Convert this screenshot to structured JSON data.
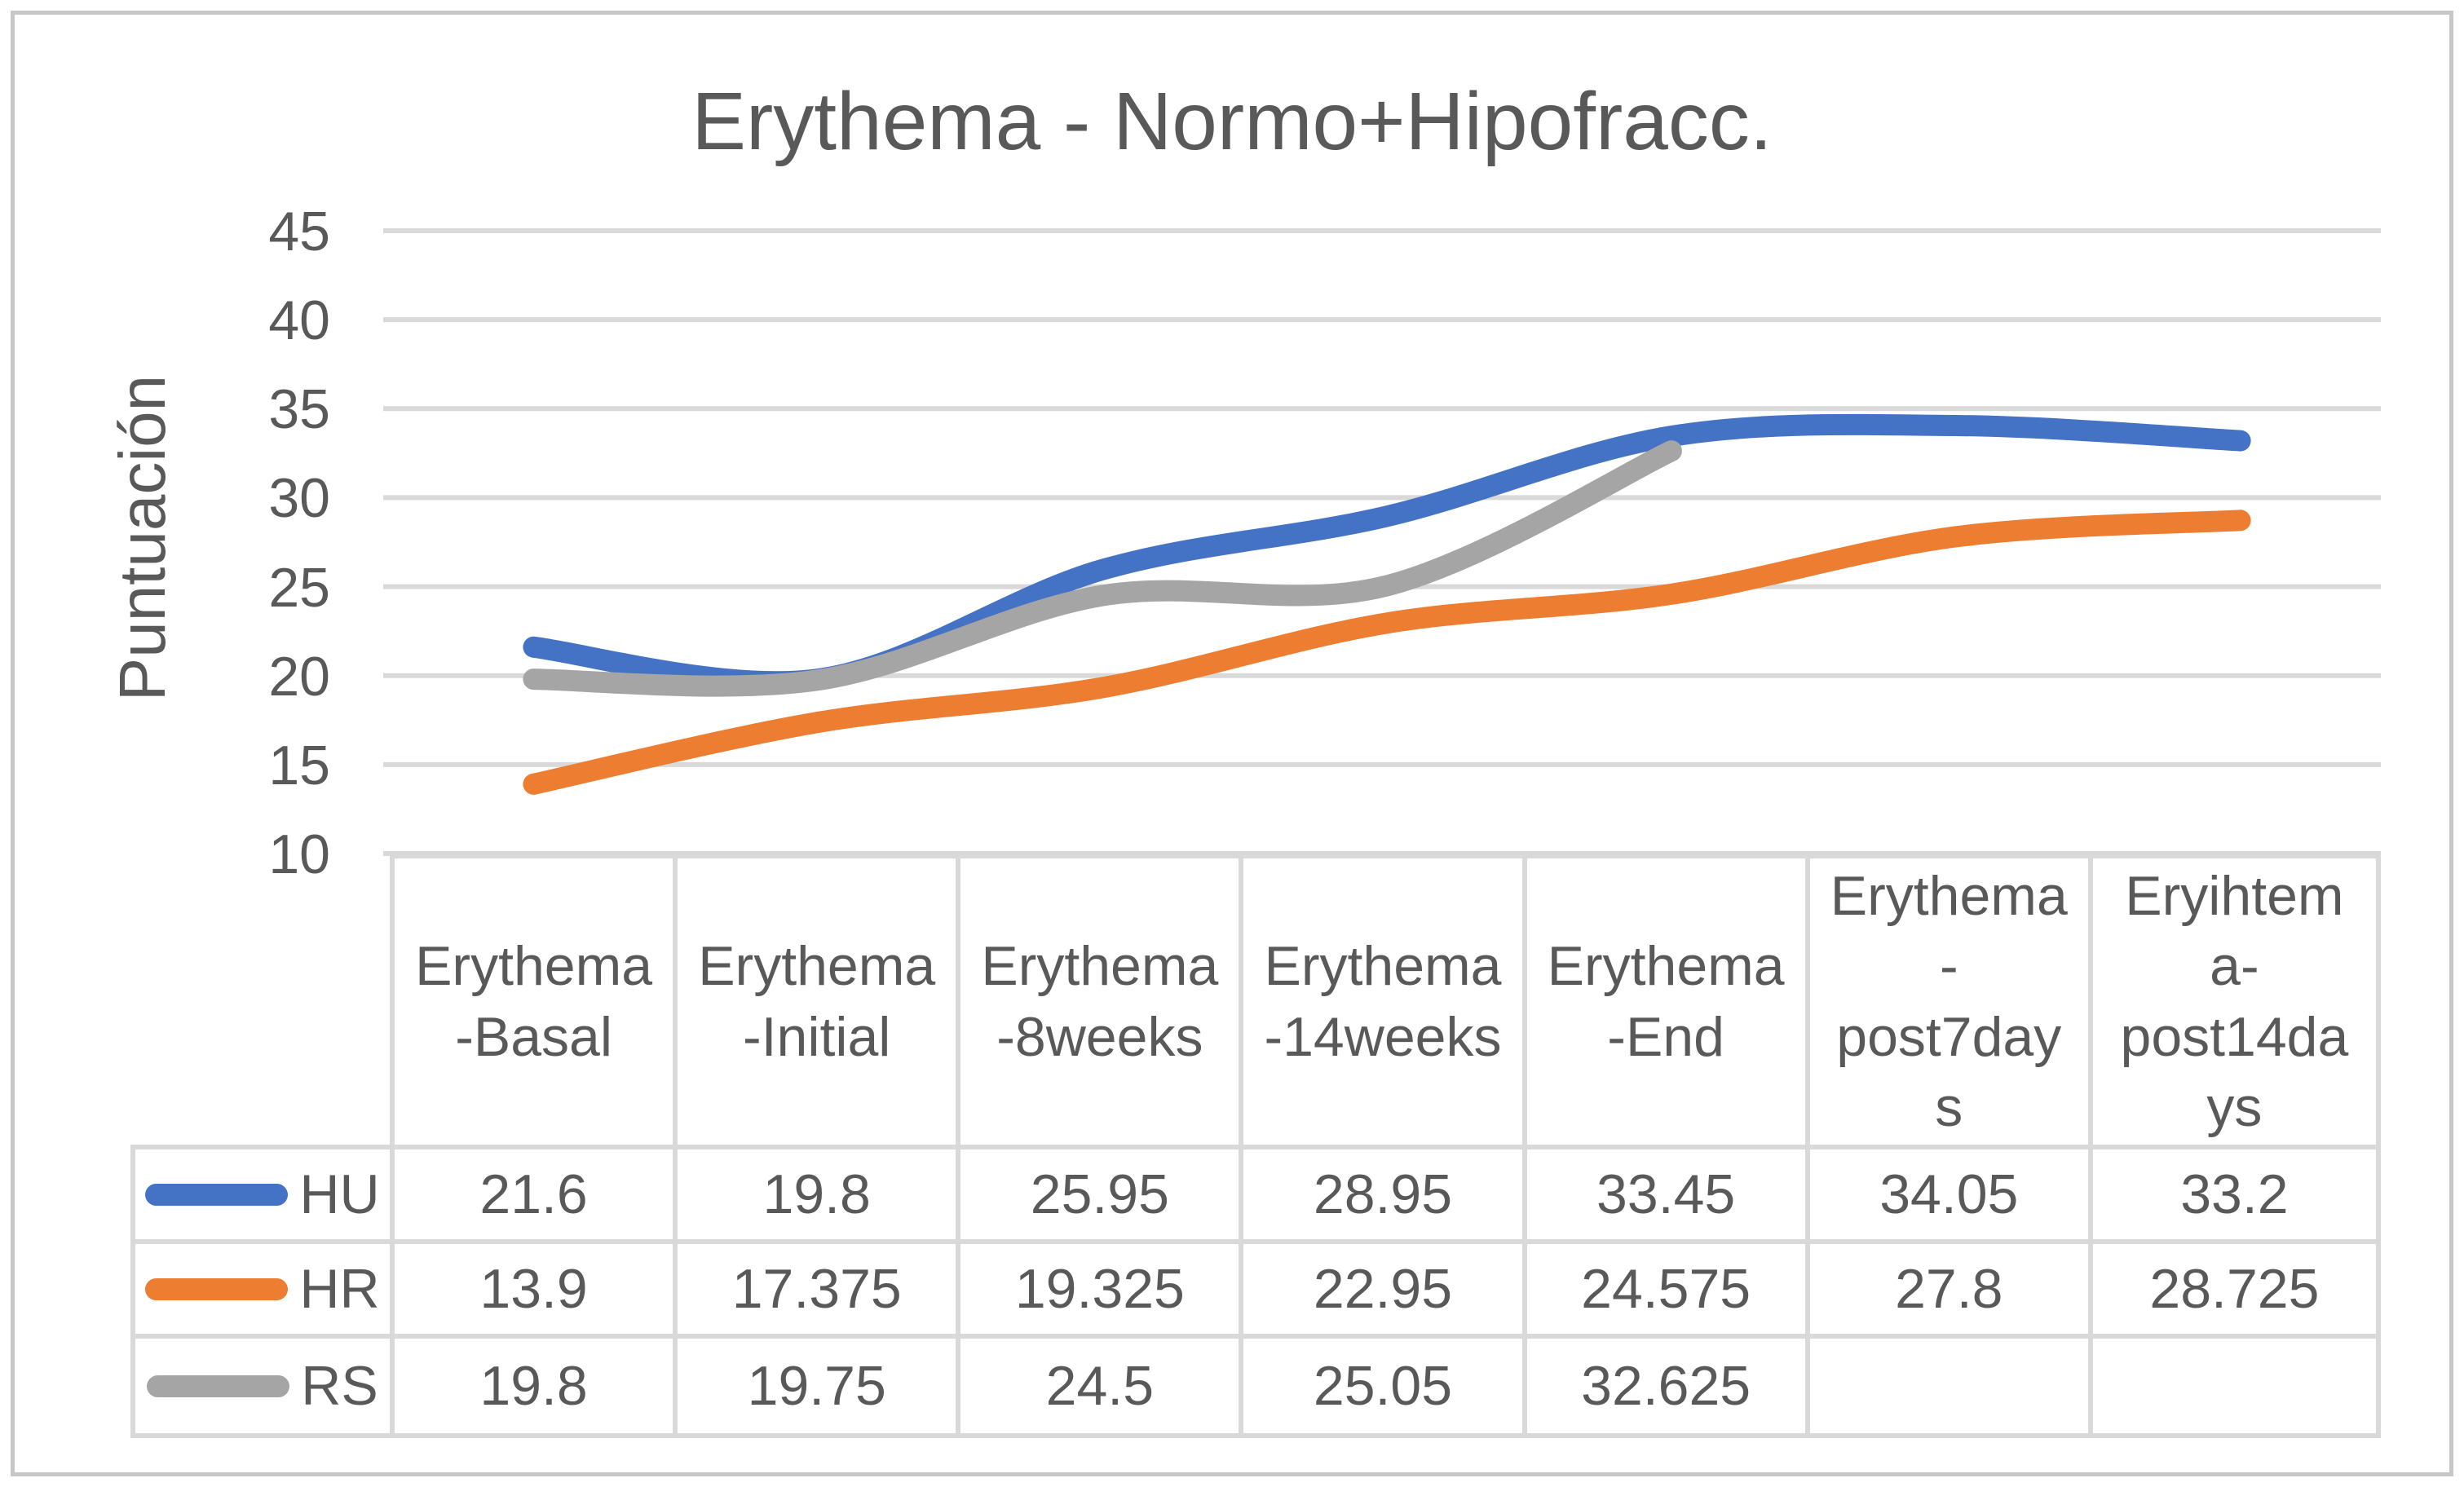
{
  "ui_colors": {
    "text": "#595959",
    "gridline": "#D9D9D9",
    "table_border": "#D9D9D9",
    "outer_frame": "#C7C7C7",
    "background": "#FFFFFF"
  },
  "chart_data": {
    "type": "line",
    "title": "Erythema - Normo+Hipofracc.",
    "xlabel": "",
    "ylabel": "Puntuación",
    "ylim": [
      10,
      45
    ],
    "y_ticks": [
      45,
      40,
      35,
      30,
      25,
      20,
      15,
      10
    ],
    "grid": true,
    "smooth_lines": true,
    "legend_position": "data-table-row-keys",
    "categories": [
      "Erythema-Basal",
      "Erythema-Initial",
      "Erythema-8weeks",
      "Erythema-14weeks",
      "Erythema-End",
      "Erythema-post7days",
      "Eryihtema-post14days"
    ],
    "categories_display": [
      "Erythema\n-Basal",
      "Erythema\n-Initial",
      "Erythema\n-8weeks",
      "Erythema\n-14weeks",
      "Erythema\n-End",
      "Erythema\n-\npost7day\ns",
      "Eryihtem\na-\npost14da\nys"
    ],
    "series": [
      {
        "name": "HU",
        "color": "#4472C4",
        "values": [
          21.6,
          19.8,
          25.95,
          28.95,
          33.45,
          34.05,
          33.2
        ]
      },
      {
        "name": "HR",
        "color": "#ED7D31",
        "values": [
          13.9,
          17.375,
          19.325,
          22.95,
          24.575,
          27.8,
          28.725
        ]
      },
      {
        "name": "RS",
        "color": "#A5A5A5",
        "values": [
          19.8,
          19.75,
          24.5,
          25.05,
          32.625,
          null,
          null
        ]
      }
    ]
  }
}
